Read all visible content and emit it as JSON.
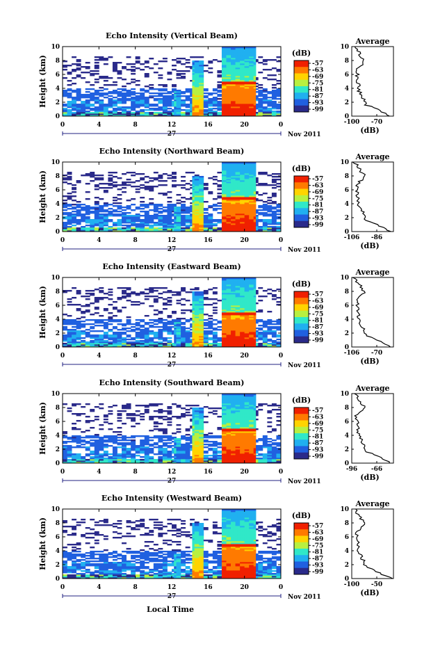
{
  "chart_data": {
    "type": "heatmap",
    "x_label": "Local Time",
    "date_label": "Nov 2011",
    "date_day": "27",
    "x_ticks": [
      "0",
      "4",
      "8",
      "12",
      "16",
      "20",
      "0"
    ],
    "y_label": "Height (km)",
    "y_ticks": [
      "0",
      "2",
      "4",
      "6",
      "8",
      "10"
    ],
    "ylim": [
      0,
      10
    ],
    "colorbar": {
      "unit": "(dB)",
      "levels": [
        "-57",
        "-63",
        "-69",
        "-75",
        "-81",
        "-87",
        "-93",
        "-99"
      ],
      "colors": [
        "#f02000",
        "#ff7a00",
        "#ffd400",
        "#b8f040",
        "#30e8c8",
        "#20b0f0",
        "#2060e0",
        "#2a2a8a"
      ]
    },
    "average_title": "Average",
    "average_xlabel": "(dB)",
    "panels": [
      {
        "title": "Echo Intensity (Vertical Beam)",
        "avg_ticks": [
          "-100",
          "-70"
        ]
      },
      {
        "title": "Echo Intensity (Northward Beam)",
        "avg_ticks": [
          "-106",
          "-86"
        ]
      },
      {
        "title": "Echo Intensity (Eastward Beam)",
        "avg_ticks": [
          "-106",
          "-70"
        ]
      },
      {
        "title": "Echo Intensity (Southward Beam)",
        "avg_ticks": [
          "-96",
          "-66"
        ]
      },
      {
        "title": "Echo Intensity (Westward Beam)",
        "avg_ticks": [
          "-100",
          "-50"
        ]
      }
    ]
  }
}
